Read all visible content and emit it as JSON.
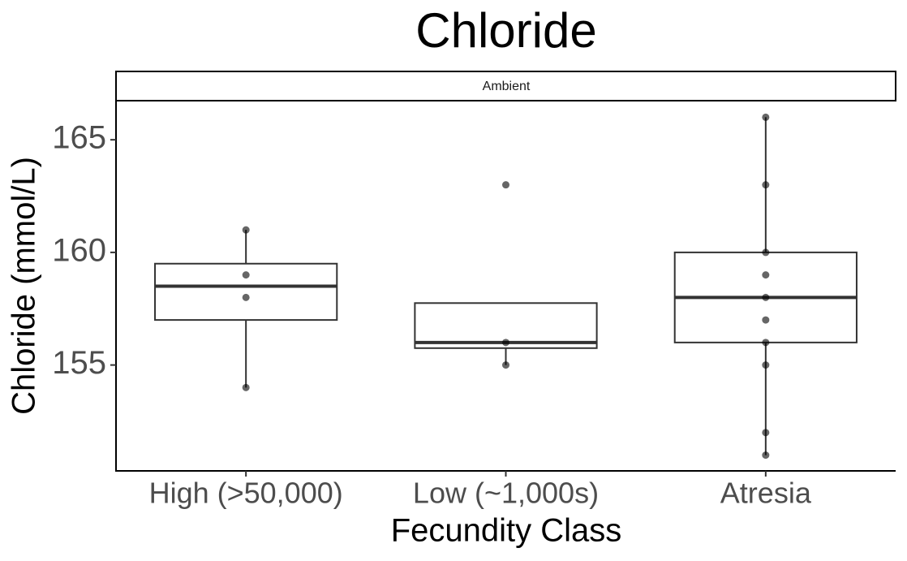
{
  "chart_data": {
    "type": "box",
    "title": "Chloride",
    "facet_label": "Ambient",
    "x_label": "Fecundity Class",
    "y_label": "Chloride (mmol/L)",
    "categories": [
      "High (>50,000)",
      "Low (~1,000s)",
      "Atresia"
    ],
    "boxes": [
      {
        "min": 154,
        "q1": 157,
        "median": 158.5,
        "q3": 159.5,
        "max": 161
      },
      {
        "min": 155,
        "q1": 155.75,
        "median": 156,
        "q3": 157.75,
        "max": 157.75
      },
      {
        "min": 151,
        "q1": 156,
        "median": 158,
        "q3": 160,
        "max": 166
      }
    ],
    "points": [
      [
        161,
        159,
        158,
        154
      ],
      [
        163,
        156,
        155
      ],
      [
        166,
        163,
        160,
        159,
        158,
        157,
        156,
        155,
        152,
        151
      ]
    ],
    "color": "#333333",
    "point_color": "#000000",
    "ylim": [
      150.3,
      166.7
    ],
    "yticks": [
      155,
      160,
      165
    ],
    "grid": false
  }
}
